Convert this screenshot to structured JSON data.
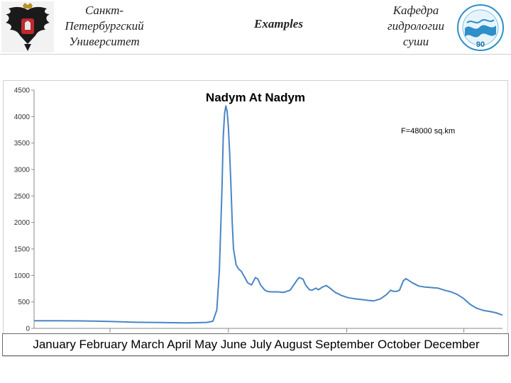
{
  "header": {
    "university_lines": [
      "Санкт-",
      "Петербургский",
      "Университет"
    ],
    "title": "Examples",
    "department_lines": [
      "Кафедра",
      "гидрологии",
      "суши"
    ],
    "logo_left_icon": "double-headed-eagle-crest-icon",
    "logo_right_icon": "hydrology-department-wave-globe-icon",
    "logo_right_text": "90"
  },
  "chart_data": {
    "type": "line",
    "title": "Nadym At Nadym",
    "annotation": "F=48000 sq.km",
    "xlabel": "",
    "ylabel": "",
    "ylim": [
      0,
      4500
    ],
    "yticks": [
      0,
      500,
      1000,
      1500,
      2000,
      2500,
      3000,
      3500,
      4000,
      4500
    ],
    "xlim": [
      1,
      365
    ],
    "month_boundaries": [
      60,
      152,
      244,
      335
    ],
    "month_labels": "January February March April May June July August September October December",
    "grid": false,
    "line_color": "#4a86c5",
    "series": [
      {
        "x": [
          1,
          20,
          40,
          60,
          80,
          100,
          120,
          135,
          140,
          143,
          145,
          147,
          148,
          149,
          150,
          151,
          152,
          153,
          154,
          155,
          156,
          158,
          160,
          162,
          165,
          167,
          170,
          173,
          175,
          177,
          180,
          182,
          185,
          190,
          195,
          200,
          205,
          207,
          210,
          212,
          215,
          217,
          220,
          222,
          225,
          228,
          231,
          235,
          240,
          245,
          250,
          255,
          260,
          265,
          270,
          275,
          278,
          280,
          283,
          285,
          288,
          290,
          295,
          300,
          305,
          310,
          315,
          320,
          325,
          330,
          335,
          340,
          345,
          350,
          355,
          360,
          365
        ],
        "y": [
          145,
          145,
          140,
          130,
          115,
          110,
          105,
          112,
          135,
          350,
          1100,
          2600,
          3600,
          4050,
          4200,
          4100,
          3800,
          3300,
          2700,
          2000,
          1500,
          1200,
          1120,
          1080,
          950,
          860,
          820,
          960,
          930,
          820,
          730,
          700,
          690,
          690,
          680,
          720,
          900,
          960,
          930,
          820,
          730,
          720,
          760,
          730,
          780,
          810,
          760,
          680,
          620,
          580,
          560,
          545,
          530,
          520,
          555,
          640,
          720,
          700,
          700,
          720,
          900,
          940,
          860,
          800,
          780,
          770,
          760,
          720,
          690,
          640,
          560,
          450,
          380,
          340,
          320,
          295,
          250
        ]
      }
    ]
  }
}
